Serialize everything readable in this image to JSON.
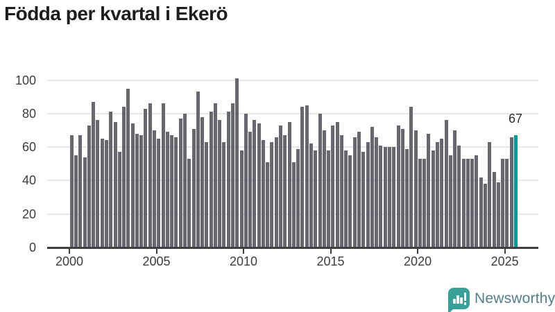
{
  "title": "Födda per kvartal i Ekerö",
  "branding": {
    "name": "Newsworthy"
  },
  "colors": {
    "bar": "#67676f",
    "highlight": "#009c9c",
    "grid": "#e7e7e7",
    "axis": "#3f3f3f",
    "tick_label": "#3d3d3d",
    "title": "#1d1d1d",
    "logo_icon": "#38a197",
    "logo_text": "#517f8d"
  },
  "chart_data": {
    "type": "bar",
    "title": "Födda per kvartal i Ekerö",
    "xlabel": "",
    "ylabel": "",
    "x_start": "2000-Q1",
    "x_end": "2025-Q3",
    "frequency": "quarterly",
    "x_tick_years": [
      2000,
      2005,
      2010,
      2015,
      2020,
      2025
    ],
    "y_ticks": [
      0,
      20,
      40,
      60,
      80,
      100
    ],
    "ylim": [
      0,
      105
    ],
    "grid": true,
    "values": [
      67,
      55,
      67,
      54,
      73,
      87,
      76,
      65,
      64,
      81,
      75,
      57,
      84,
      95,
      74,
      68,
      67,
      83,
      86,
      70,
      65,
      86,
      69,
      67,
      66,
      77,
      80,
      53,
      71,
      93,
      78,
      63,
      81,
      86,
      76,
      63,
      81,
      86,
      101,
      58,
      80,
      69,
      76,
      74,
      64,
      51,
      63,
      66,
      73,
      67,
      75,
      51,
      59,
      84,
      85,
      62,
      58,
      80,
      70,
      58,
      73,
      75,
      67,
      58,
      55,
      66,
      69,
      57,
      63,
      72,
      66,
      61,
      60,
      60,
      60,
      73,
      71,
      59,
      84,
      70,
      53,
      53,
      68,
      58,
      63,
      65,
      76,
      55,
      70,
      61,
      53,
      53,
      53,
      55,
      42,
      38,
      63,
      45,
      39,
      53,
      53,
      66,
      67
    ],
    "highlight": {
      "position": "last",
      "label": "67",
      "value": 67
    }
  }
}
